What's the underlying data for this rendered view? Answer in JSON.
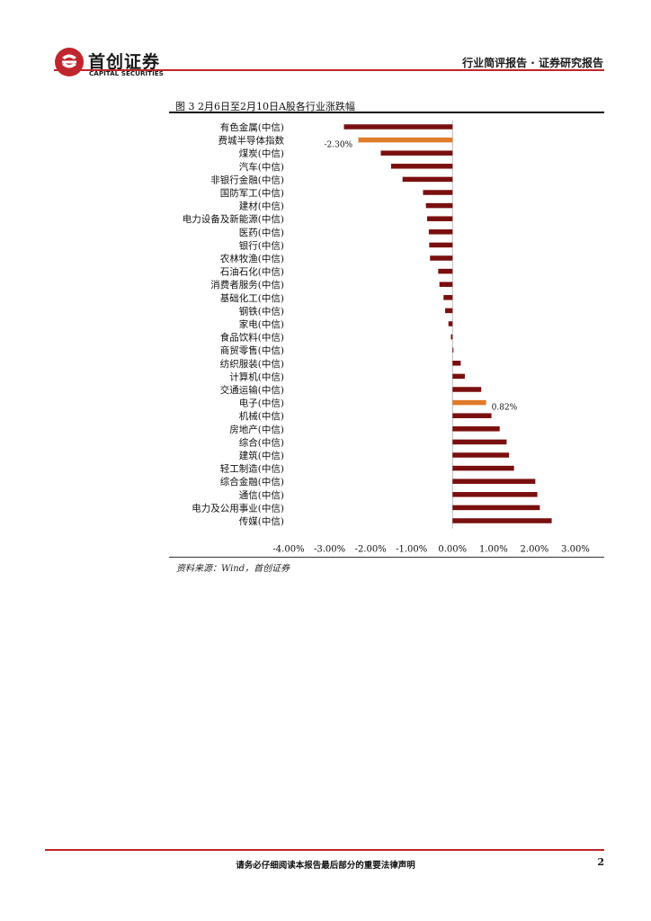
{
  "header": {
    "logo_cn": "首创证券",
    "logo_en": "CAPITAL SECURITIES",
    "report_type": "行业简评报告 · 证券研究报告"
  },
  "figure": {
    "title": "图 3 2月6日至2月10日A股各行业涨跌幅",
    "source": "资料来源：Wind，首创证券"
  },
  "footer": {
    "disclaimer": "请务必仔细阅读本报告最后部分的重要法律声明",
    "page": "2"
  },
  "chart_data": {
    "type": "bar",
    "orientation": "horizontal",
    "categories": [
      "有色金属(中信)",
      "费城半导体指数",
      "煤炭(中信)",
      "汽车(中信)",
      "非银行金融(中信)",
      "国防军工(中信)",
      "建材(中信)",
      "电力设备及新能源(中信)",
      "医药(中信)",
      "银行(中信)",
      "农林牧渔(中信)",
      "石油石化(中信)",
      "消费者服务(中信)",
      "基础化工(中信)",
      "钢铁(中信)",
      "家电(中信)",
      "食品饮料(中信)",
      "商贸零售(中信)",
      "纺织服装(中信)",
      "计算机(中信)",
      "交通运输(中信)",
      "电子(中信)",
      "机械(中信)",
      "房地产(中信)",
      "综合(中信)",
      "建筑(中信)",
      "轻工制造(中信)",
      "综合金融(中信)",
      "通信(中信)",
      "电力及公用事业(中信)",
      "传媒(中信)"
    ],
    "values": [
      -2.65,
      -2.3,
      -1.75,
      -1.5,
      -1.22,
      -0.72,
      -0.65,
      -0.62,
      -0.58,
      -0.57,
      -0.55,
      -0.35,
      -0.32,
      -0.22,
      -0.18,
      -0.1,
      -0.04,
      0.02,
      0.2,
      0.3,
      0.7,
      0.82,
      0.95,
      1.15,
      1.32,
      1.38,
      1.5,
      2.02,
      2.07,
      2.13,
      2.42
    ],
    "highlight": [
      "费城半导体指数",
      "电子(中信)"
    ],
    "data_labels": [
      {
        "category": "费城半导体指数",
        "text": "-2.30%"
      },
      {
        "category": "电子(中信)",
        "text": "0.82%"
      }
    ],
    "xticks": [
      "-4.00%",
      "-3.00%",
      "-2.00%",
      "-1.00%",
      "0.00%",
      "1.00%",
      "2.00%",
      "3.00%"
    ],
    "xlim": [
      -4,
      3
    ],
    "colors": {
      "bar": "#7a0f0f",
      "highlight": "#e07b2a"
    },
    "grid": false,
    "legend": "none"
  }
}
